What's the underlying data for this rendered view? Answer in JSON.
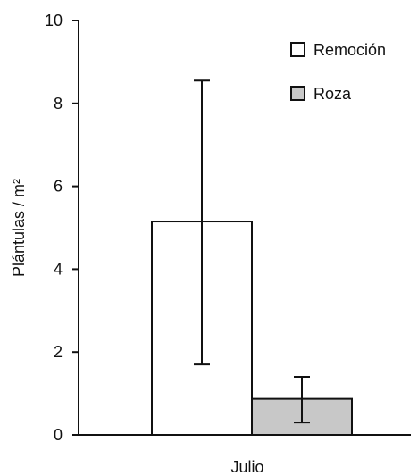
{
  "chart_data": {
    "type": "bar",
    "categories": [
      "Julio"
    ],
    "series": [
      {
        "name": "Remoción",
        "values": [
          5.15
        ],
        "error_low": [
          1.7
        ],
        "error_high": [
          8.55
        ],
        "color": "#ffffff"
      },
      {
        "name": "Roza",
        "values": [
          0.87
        ],
        "error_low": [
          0.3
        ],
        "error_high": [
          1.4
        ],
        "color": "#c8c8c8"
      }
    ],
    "ylabel": "Plántulas / m²",
    "xlabel": "",
    "ylim": [
      0,
      10
    ],
    "yticks": [
      0,
      2,
      4,
      6,
      8,
      10
    ],
    "legend_position": "top-right",
    "grid": false
  }
}
